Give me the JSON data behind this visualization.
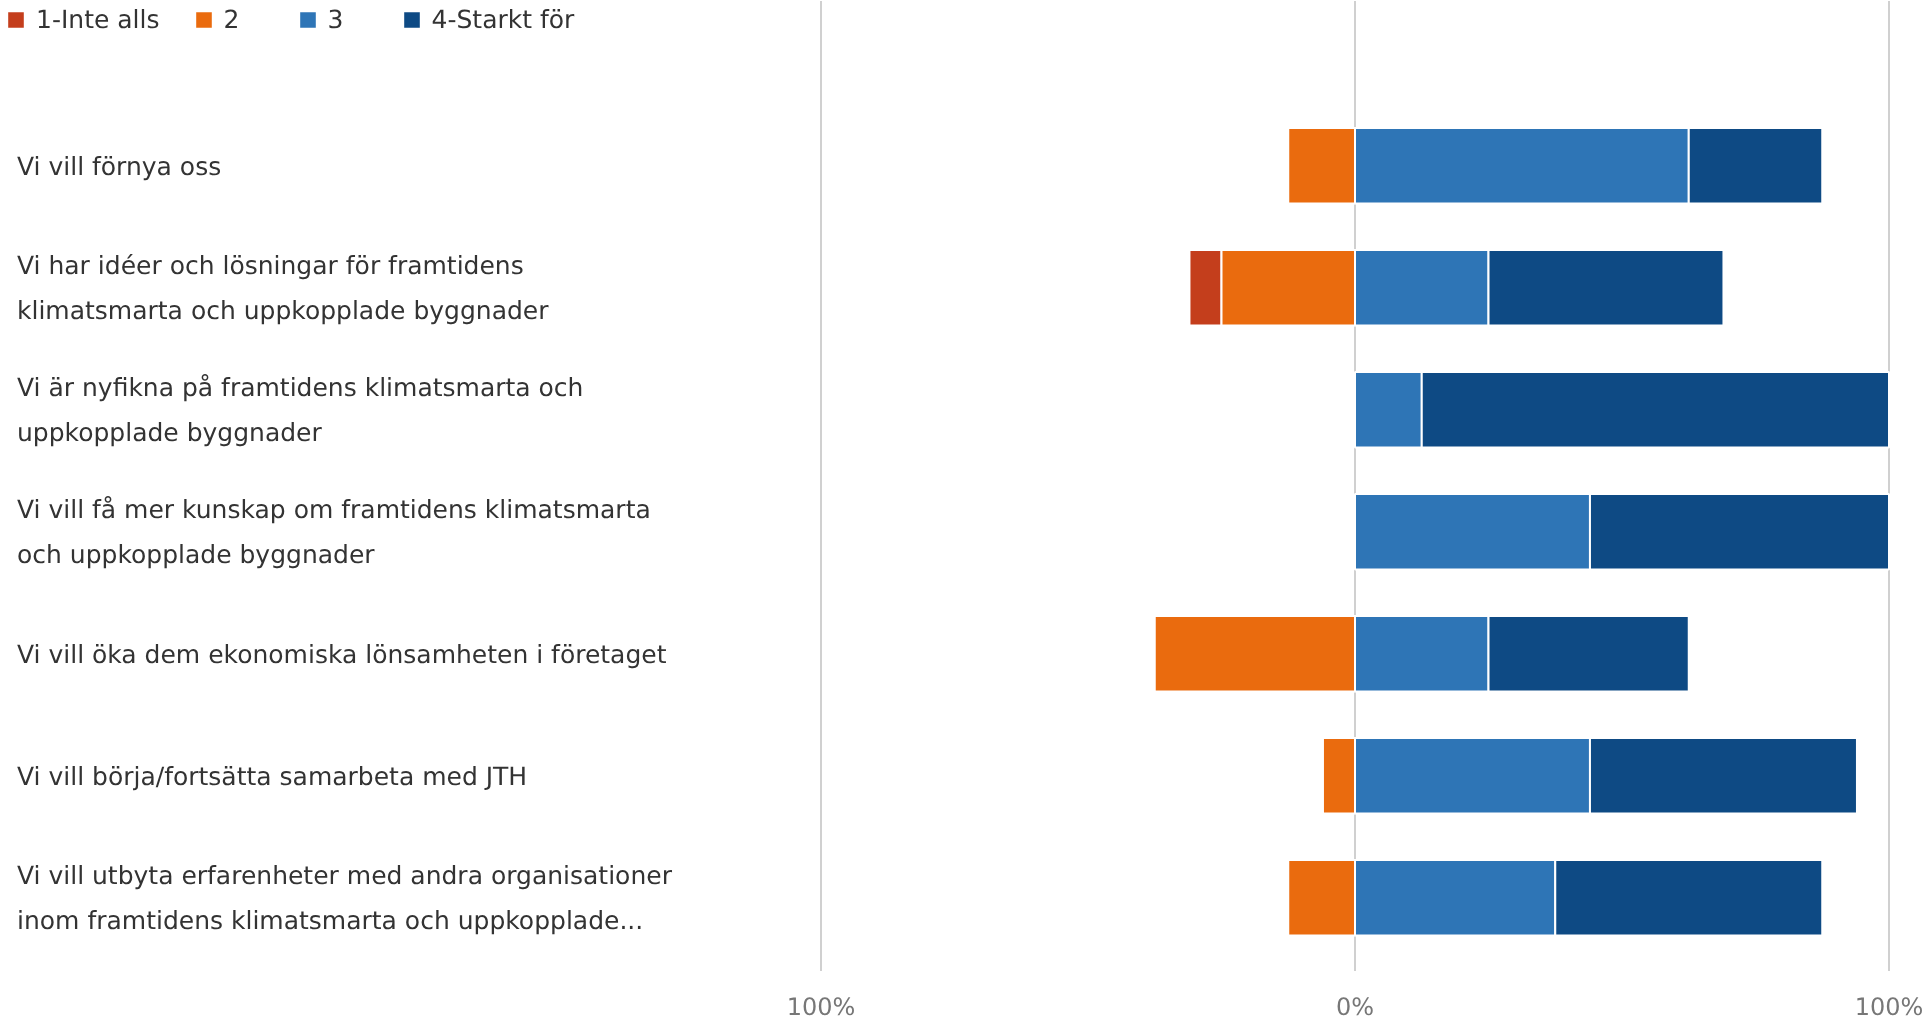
{
  "chart_data": {
    "type": "bar",
    "orientation": "horizontal",
    "stacked": true,
    "categories": [
      "Vi vill förnya oss",
      "Vi har idéer och lösningar för framtidens\nklimatsmarta och uppkopplade byggnader",
      "Vi är nyfikna på framtidens klimatsmarta och\nuppkopplade byggnader",
      "Vi vill få mer kunskap om framtidens klimatsmarta\noch uppkopplade byggnader",
      "Vi vill öka dem ekonomiska lönsamheten i företaget",
      "Vi vill börja/fortsätta samarbeta med JTH",
      "Vi vill utbyta erfarenheter med andra organisationer\ninom framtidens klimatsmarta och uppkopplade..."
    ],
    "series": [
      {
        "name": "1-Inte alls",
        "color": "#c43e1c",
        "values": [
          0,
          -6,
          0,
          0,
          0,
          0,
          0
        ]
      },
      {
        "name": "2",
        "color": "#ea6b0e",
        "values": [
          -12.5,
          -25,
          0,
          0,
          -37.5,
          -6,
          -12.5
        ]
      },
      {
        "name": "3",
        "color": "#2e75b6",
        "values": [
          62.5,
          25,
          12.5,
          44,
          25,
          44,
          37.5
        ]
      },
      {
        "name": "4-Starkt för",
        "color": "#0e4a84",
        "values": [
          25,
          44,
          87.5,
          56,
          37.5,
          50,
          50
        ]
      }
    ],
    "xlim": [
      -100,
      100
    ],
    "xticks": [
      {
        "value": -100,
        "label": "100%"
      },
      {
        "value": 0,
        "label": "0%"
      },
      {
        "value": 100,
        "label": "100%"
      }
    ],
    "grid": "x",
    "legend": "top left"
  }
}
